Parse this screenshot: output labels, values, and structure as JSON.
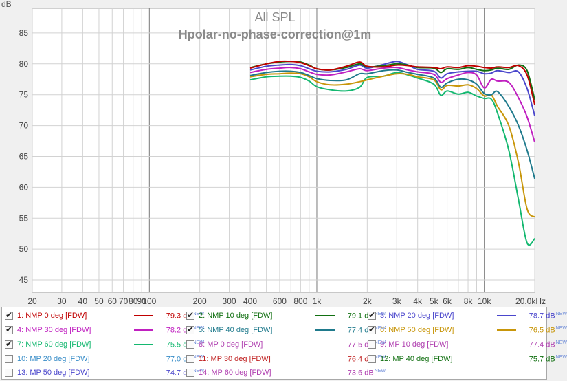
{
  "chart_data": {
    "type": "line",
    "title": "All SPL",
    "subtitle": "Hpolar-no-phase-correction@1m",
    "ylabel": "dB",
    "xscale": "log",
    "xlim": [
      20,
      20000
    ],
    "ylim": [
      43,
      89
    ],
    "grid": true,
    "x_ticks": [
      20,
      30,
      40,
      50,
      60,
      70,
      80,
      90,
      100,
      200,
      300,
      400,
      600,
      800,
      1000,
      2000,
      3000,
      4000,
      5000,
      6000,
      8000,
      10000,
      20000
    ],
    "x_tick_labels": [
      "20",
      "30",
      "40",
      "50",
      "60",
      "70",
      "80",
      "90",
      "100",
      "200",
      "300",
      "400",
      "600",
      "800",
      "1k",
      "2k",
      "3k",
      "4k",
      "5k",
      "6k",
      "8k",
      "10k",
      "20.0kHz"
    ],
    "y_ticks": [
      45,
      50,
      55,
      60,
      65,
      70,
      75,
      80,
      85
    ],
    "x": [
      400,
      500,
      600,
      700,
      800,
      900,
      1000,
      1200,
      1500,
      1800,
      2000,
      2500,
      3000,
      3500,
      4000,
      5000,
      5500,
      6000,
      7000,
      8000,
      9000,
      10000,
      11000,
      12000,
      14000,
      16000,
      18000,
      20000
    ],
    "series": [
      {
        "name": "1: NMP 0 deg [FDW]",
        "color": "#c00000",
        "values": [
          79.3,
          80.0,
          80.4,
          80.4,
          80.2,
          79.7,
          79.2,
          79.0,
          79.6,
          80.3,
          79.6,
          79.5,
          79.8,
          79.7,
          79.5,
          79.4,
          79.2,
          79.5,
          79.4,
          79.7,
          79.6,
          79.4,
          79.3,
          79.5,
          79.4,
          79.7,
          78.2,
          73.4
        ]
      },
      {
        "name": "2: NMP 10 deg [FDW]",
        "color": "#127012",
        "values": [
          79.4,
          80.0,
          80.3,
          80.4,
          80.3,
          79.8,
          79.2,
          79.0,
          79.4,
          80.0,
          79.5,
          79.7,
          80.0,
          79.8,
          79.4,
          79.3,
          78.6,
          79.2,
          79.1,
          79.4,
          79.1,
          78.9,
          79.0,
          79.3,
          79.1,
          79.8,
          78.9,
          74.2
        ]
      },
      {
        "name": "3: NMP 20 deg [FDW]",
        "color": "#4a46cc",
        "values": [
          79.0,
          79.6,
          79.8,
          79.9,
          79.7,
          79.2,
          78.8,
          78.7,
          79.1,
          79.8,
          79.3,
          79.9,
          80.4,
          79.8,
          79.1,
          78.8,
          77.7,
          78.4,
          78.7,
          78.8,
          78.8,
          78.4,
          78.5,
          78.9,
          78.6,
          78.7,
          76.0,
          71.6
        ]
      },
      {
        "name": "4: NMP 30 deg [FDW]",
        "color": "#c020c0",
        "values": [
          78.6,
          79.1,
          79.3,
          79.4,
          79.2,
          78.7,
          78.3,
          78.2,
          78.7,
          79.2,
          78.9,
          79.3,
          79.4,
          79.0,
          78.7,
          78.3,
          77.0,
          77.6,
          78.2,
          78.6,
          78.2,
          76.1,
          77.5,
          77.2,
          77.0,
          74.5,
          71.4,
          67.3
        ]
      },
      {
        "name": "5: NMP 40 deg [FDW]",
        "color": "#1f7a8c",
        "values": [
          78.1,
          78.6,
          78.8,
          78.8,
          78.6,
          78.1,
          77.6,
          77.3,
          77.4,
          78.4,
          78.4,
          78.9,
          79.0,
          78.6,
          78.3,
          77.7,
          76.2,
          76.9,
          77.5,
          77.4,
          76.7,
          75.2,
          75.0,
          75.5,
          73.1,
          70.0,
          66.0,
          61.4
        ]
      },
      {
        "name": "6: NMP 50 deg [FDW]",
        "color": "#c8960a",
        "values": [
          77.9,
          78.3,
          78.4,
          78.5,
          78.4,
          77.9,
          77.1,
          76.6,
          76.7,
          77.1,
          77.4,
          78.0,
          78.4,
          78.3,
          77.9,
          77.4,
          75.8,
          76.5,
          76.4,
          76.6,
          76.0,
          74.8,
          75.0,
          73.1,
          70.0,
          64.0,
          56.5,
          55.2
        ]
      },
      {
        "name": "7: NMP 60 deg [FDW]",
        "color": "#14b870",
        "values": [
          77.4,
          77.9,
          78.0,
          78.0,
          77.8,
          77.2,
          76.3,
          75.8,
          75.6,
          76.2,
          77.8,
          78.0,
          78.6,
          78.2,
          77.7,
          76.7,
          74.9,
          75.6,
          75.1,
          75.4,
          74.8,
          74.4,
          74.3,
          72.0,
          66.0,
          58.0,
          51.0,
          51.7
        ]
      }
    ]
  },
  "legend": {
    "new_tag": "NEW",
    "items": [
      {
        "label": "1: NMP 0 deg [FDW]",
        "value": "79.3 dB",
        "color": "#c00000",
        "line": true,
        "checked": true
      },
      {
        "label": "2: NMP 10 deg [FDW]",
        "value": "79.1 dB",
        "color": "#127012",
        "line": true,
        "checked": true
      },
      {
        "label": "3: NMP 20 deg [FDW]",
        "value": "78.7 dB",
        "color": "#4a46cc",
        "line": true,
        "checked": true
      },
      {
        "label": "4: NMP 30 deg [FDW]",
        "value": "78.2 dB",
        "color": "#c020c0",
        "line": true,
        "checked": true
      },
      {
        "label": "5: NMP 40 deg [FDW]",
        "value": "77.4 dB",
        "color": "#1f7a8c",
        "line": true,
        "checked": true
      },
      {
        "label": "6: NMP 50 deg [FDW]",
        "value": "76.5 dB",
        "color": "#c8960a",
        "line": true,
        "checked": true
      },
      {
        "label": "7: NMP 60 deg [FDW]",
        "value": "75.5 dB",
        "color": "#14b870",
        "line": true,
        "checked": true
      },
      {
        "label": "8: MP 0 deg [FDW]",
        "value": "77.5 dB",
        "color": "#b040b0",
        "line": false,
        "checked": false
      },
      {
        "label": "9: MP 10 deg [FDW]",
        "value": "77.4 dB",
        "color": "#b040b0",
        "line": false,
        "checked": false
      },
      {
        "label": "10: MP 20 deg [FDW]",
        "value": "77.0 dB",
        "color": "#3a8ec8",
        "line": false,
        "checked": false
      },
      {
        "label": "11: MP 30 deg [FDW]",
        "value": "76.4 dB",
        "color": "#c02020",
        "line": false,
        "checked": false
      },
      {
        "label": "12: MP 40 deg [FDW]",
        "value": "75.7 dB",
        "color": "#127012",
        "line": false,
        "checked": false
      },
      {
        "label": "13: MP 50 deg [FDW]",
        "value": "74.7 dB",
        "color": "#4a46cc",
        "line": false,
        "checked": false
      },
      {
        "label": "14: MP 60 deg [FDW]",
        "value": "73.6 dB",
        "color": "#b040b0",
        "line": false,
        "checked": false
      }
    ]
  }
}
